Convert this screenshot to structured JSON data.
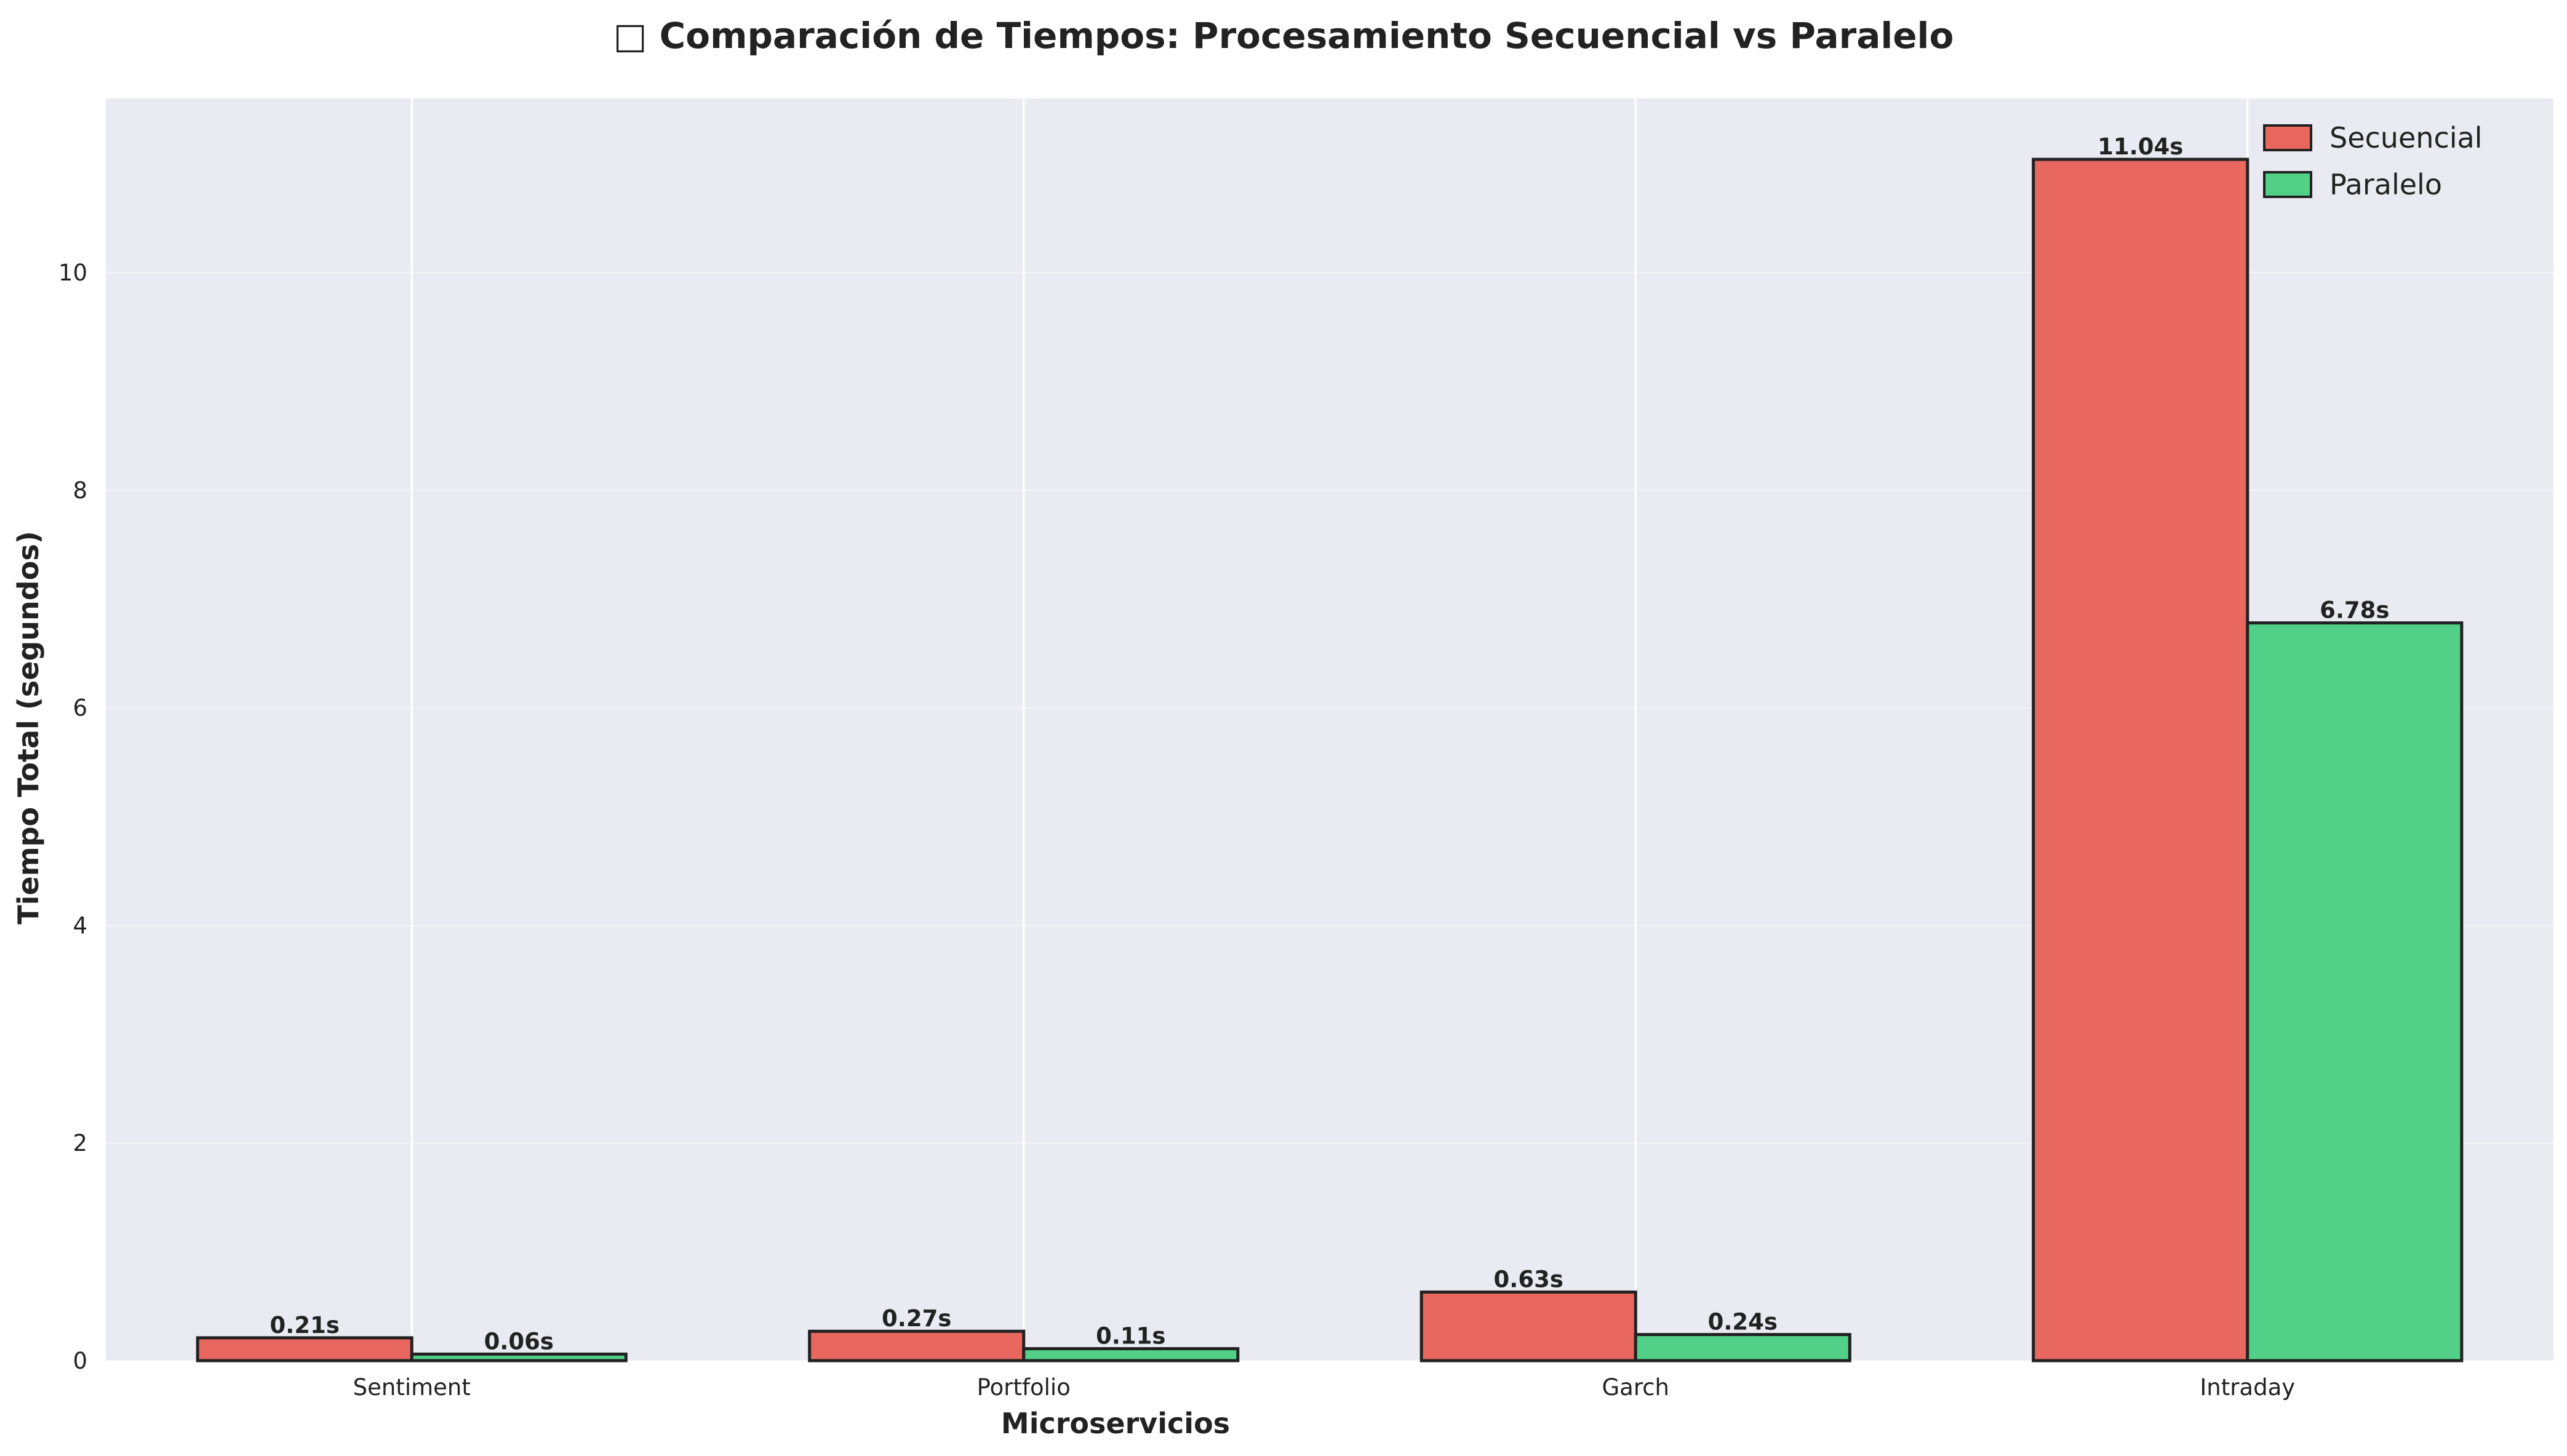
{
  "chart_data": {
    "type": "bar",
    "title": "□ Comparación de Tiempos: Procesamiento Secuencial vs Paralelo",
    "xlabel": "Microservicios",
    "ylabel": "Tiempo Total (segundos)",
    "categories": [
      "Sentiment",
      "Portfolio",
      "Garch",
      "Intraday"
    ],
    "series": [
      {
        "name": "Secuencial",
        "values": [
          0.21,
          0.27,
          0.63,
          11.04
        ],
        "labels": [
          "0.21s",
          "0.27s",
          "0.63s",
          "11.04s"
        ],
        "color": "#e8685f"
      },
      {
        "name": "Paralelo",
        "values": [
          0.06,
          0.11,
          0.24,
          6.78
        ],
        "labels": [
          "0.06s",
          "0.11s",
          "0.24s",
          "6.78s"
        ],
        "color": "#52d088"
      }
    ],
    "ylim": [
      0,
      11.6
    ],
    "yticks": [
      0,
      2,
      4,
      6,
      8,
      10
    ],
    "ytick_labels": [
      "0",
      "2",
      "4",
      "6",
      "8",
      "10"
    ],
    "grid": true,
    "legend_position": "top-right",
    "background": "#eaeaf2",
    "bar_edge_color": "#222222"
  }
}
